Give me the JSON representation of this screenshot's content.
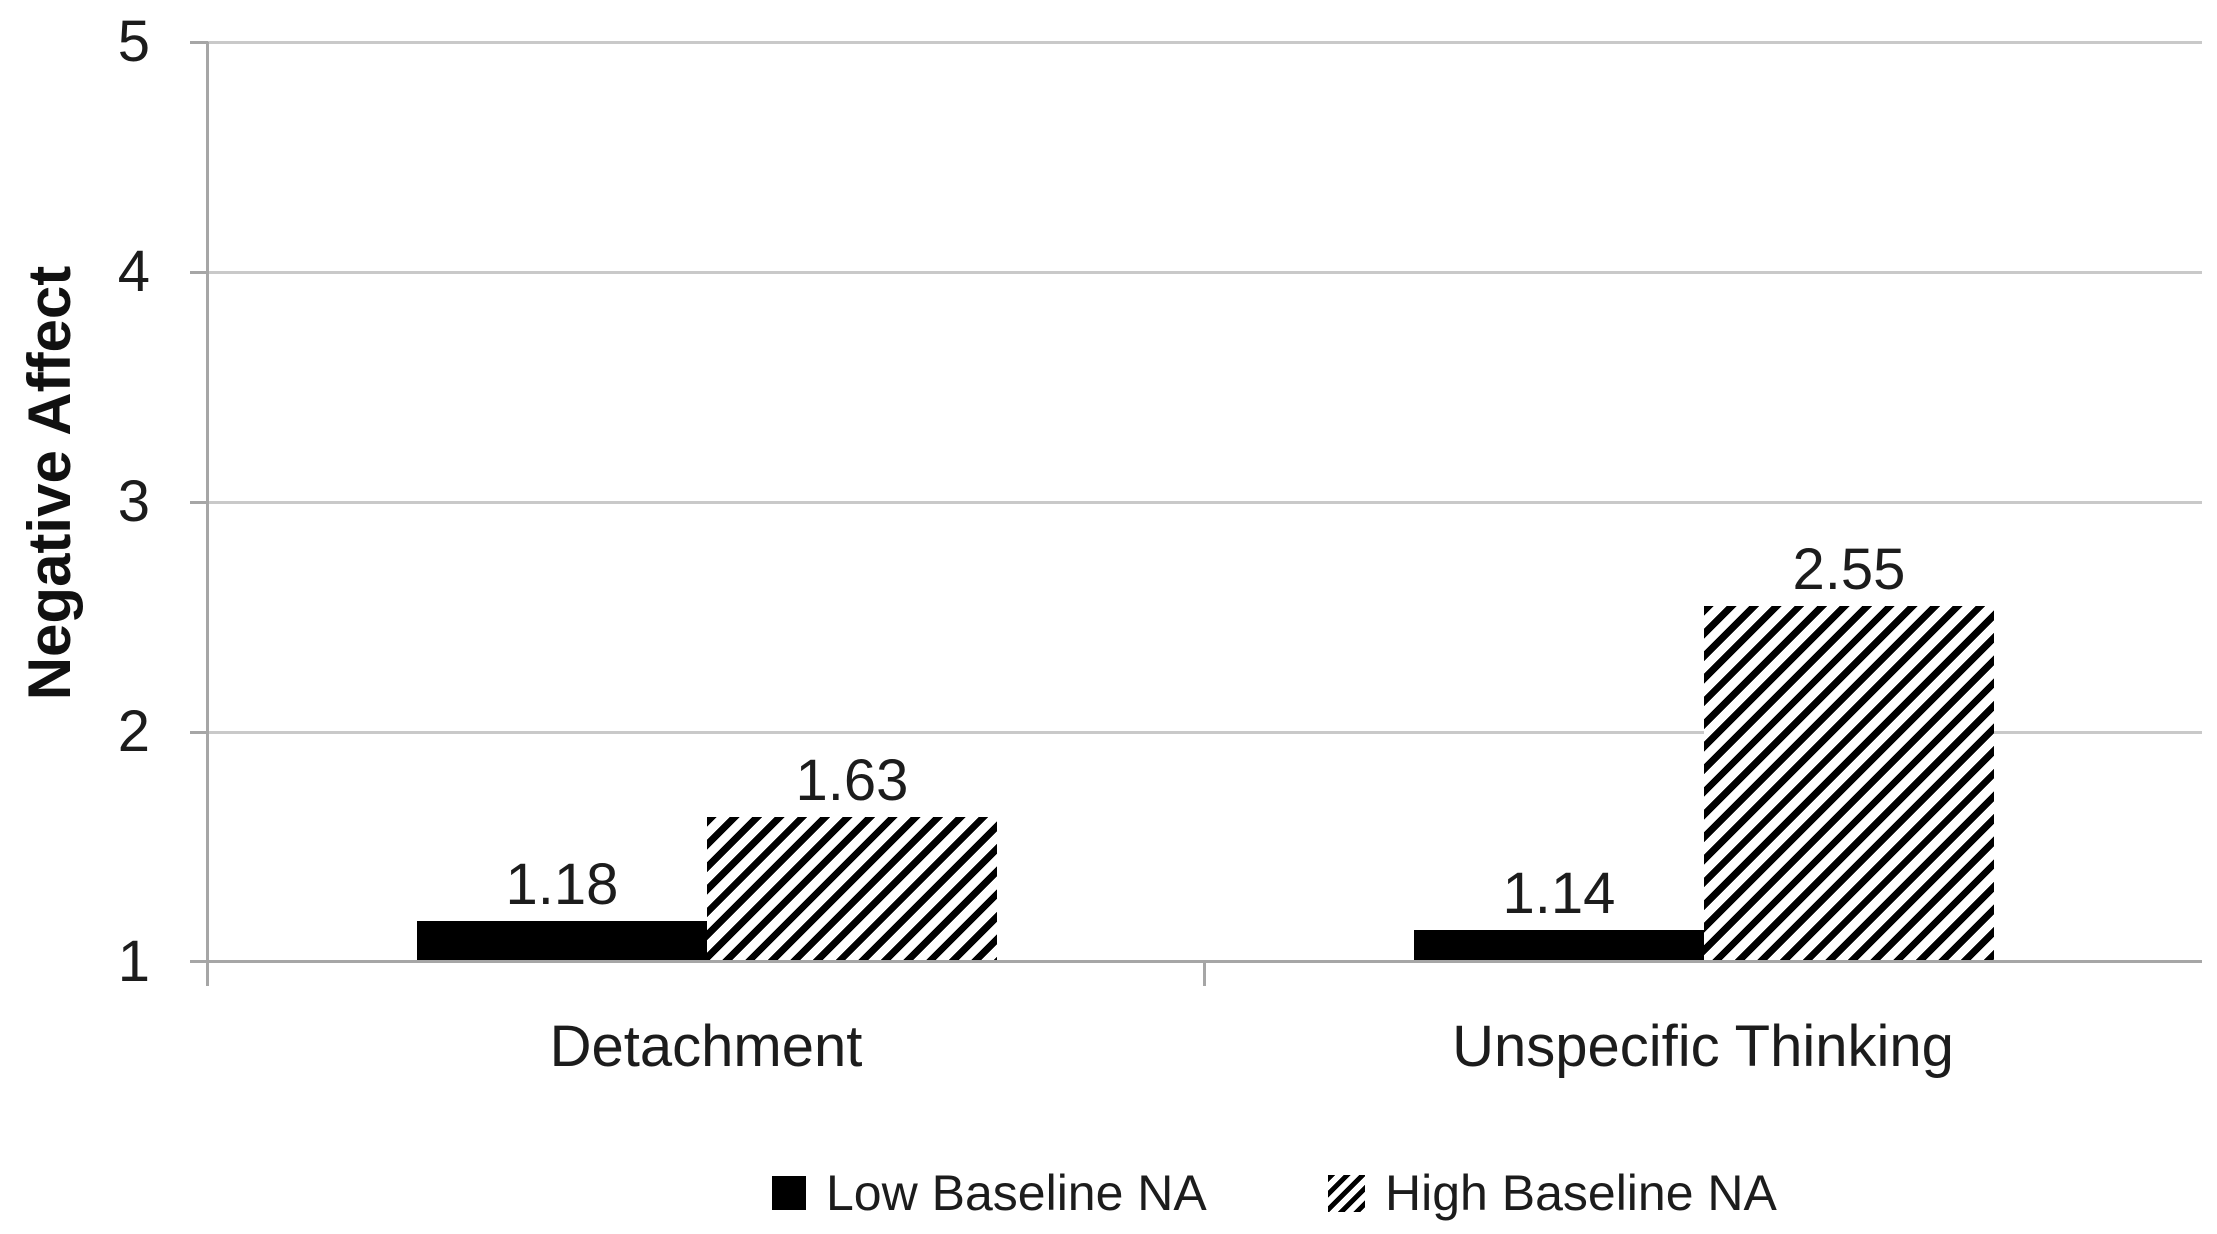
{
  "chart_data": {
    "type": "bar",
    "title": "",
    "categories": [
      "Detachment",
      "Unspecific Thinking"
    ],
    "series": [
      {
        "name": "Low Baseline NA",
        "fill": "solid-black",
        "values": [
          1.18,
          1.14
        ],
        "data_labels": [
          "1.18",
          "1.14"
        ]
      },
      {
        "name": "High Baseline NA",
        "fill": "diagonal-hatch",
        "values": [
          1.63,
          2.55
        ],
        "data_labels": [
          "1.63",
          "2.55"
        ]
      }
    ],
    "xlabel": "",
    "ylabel": "Negative Affect",
    "ylim": [
      1,
      5
    ],
    "y_tick_labels": [
      "5",
      "4",
      "3",
      "2",
      "1"
    ],
    "grid": true,
    "legend_position": "bottom",
    "colors": {
      "bar": "#000000",
      "text": "#1c1c1c",
      "gridline": "#c9c9c9",
      "axis": "#a6a6a6",
      "background": "#ffffff"
    }
  }
}
